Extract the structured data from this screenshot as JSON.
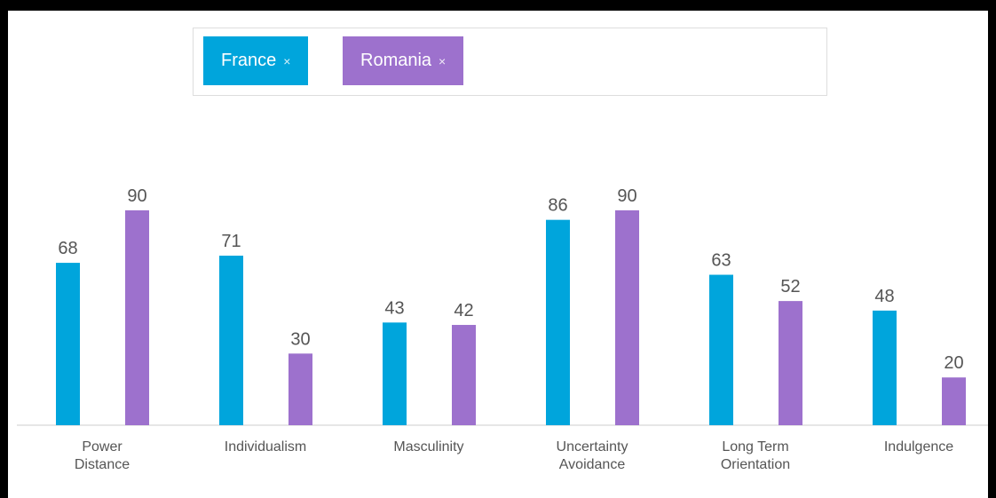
{
  "chart_data": {
    "type": "bar",
    "categories": [
      "Power Distance",
      "Individualism",
      "Masculinity",
      "Uncertainty Avoidance",
      "Long Term Orientation",
      "Indulgence"
    ],
    "series": [
      {
        "name": "France",
        "color": "#00a5dc",
        "values": [
          68,
          71,
          43,
          86,
          63,
          48
        ]
      },
      {
        "name": "Romania",
        "color": "#9d71cd",
        "values": [
          90,
          30,
          42,
          90,
          52,
          20
        ]
      }
    ],
    "ylim": [
      0,
      100
    ]
  }
}
